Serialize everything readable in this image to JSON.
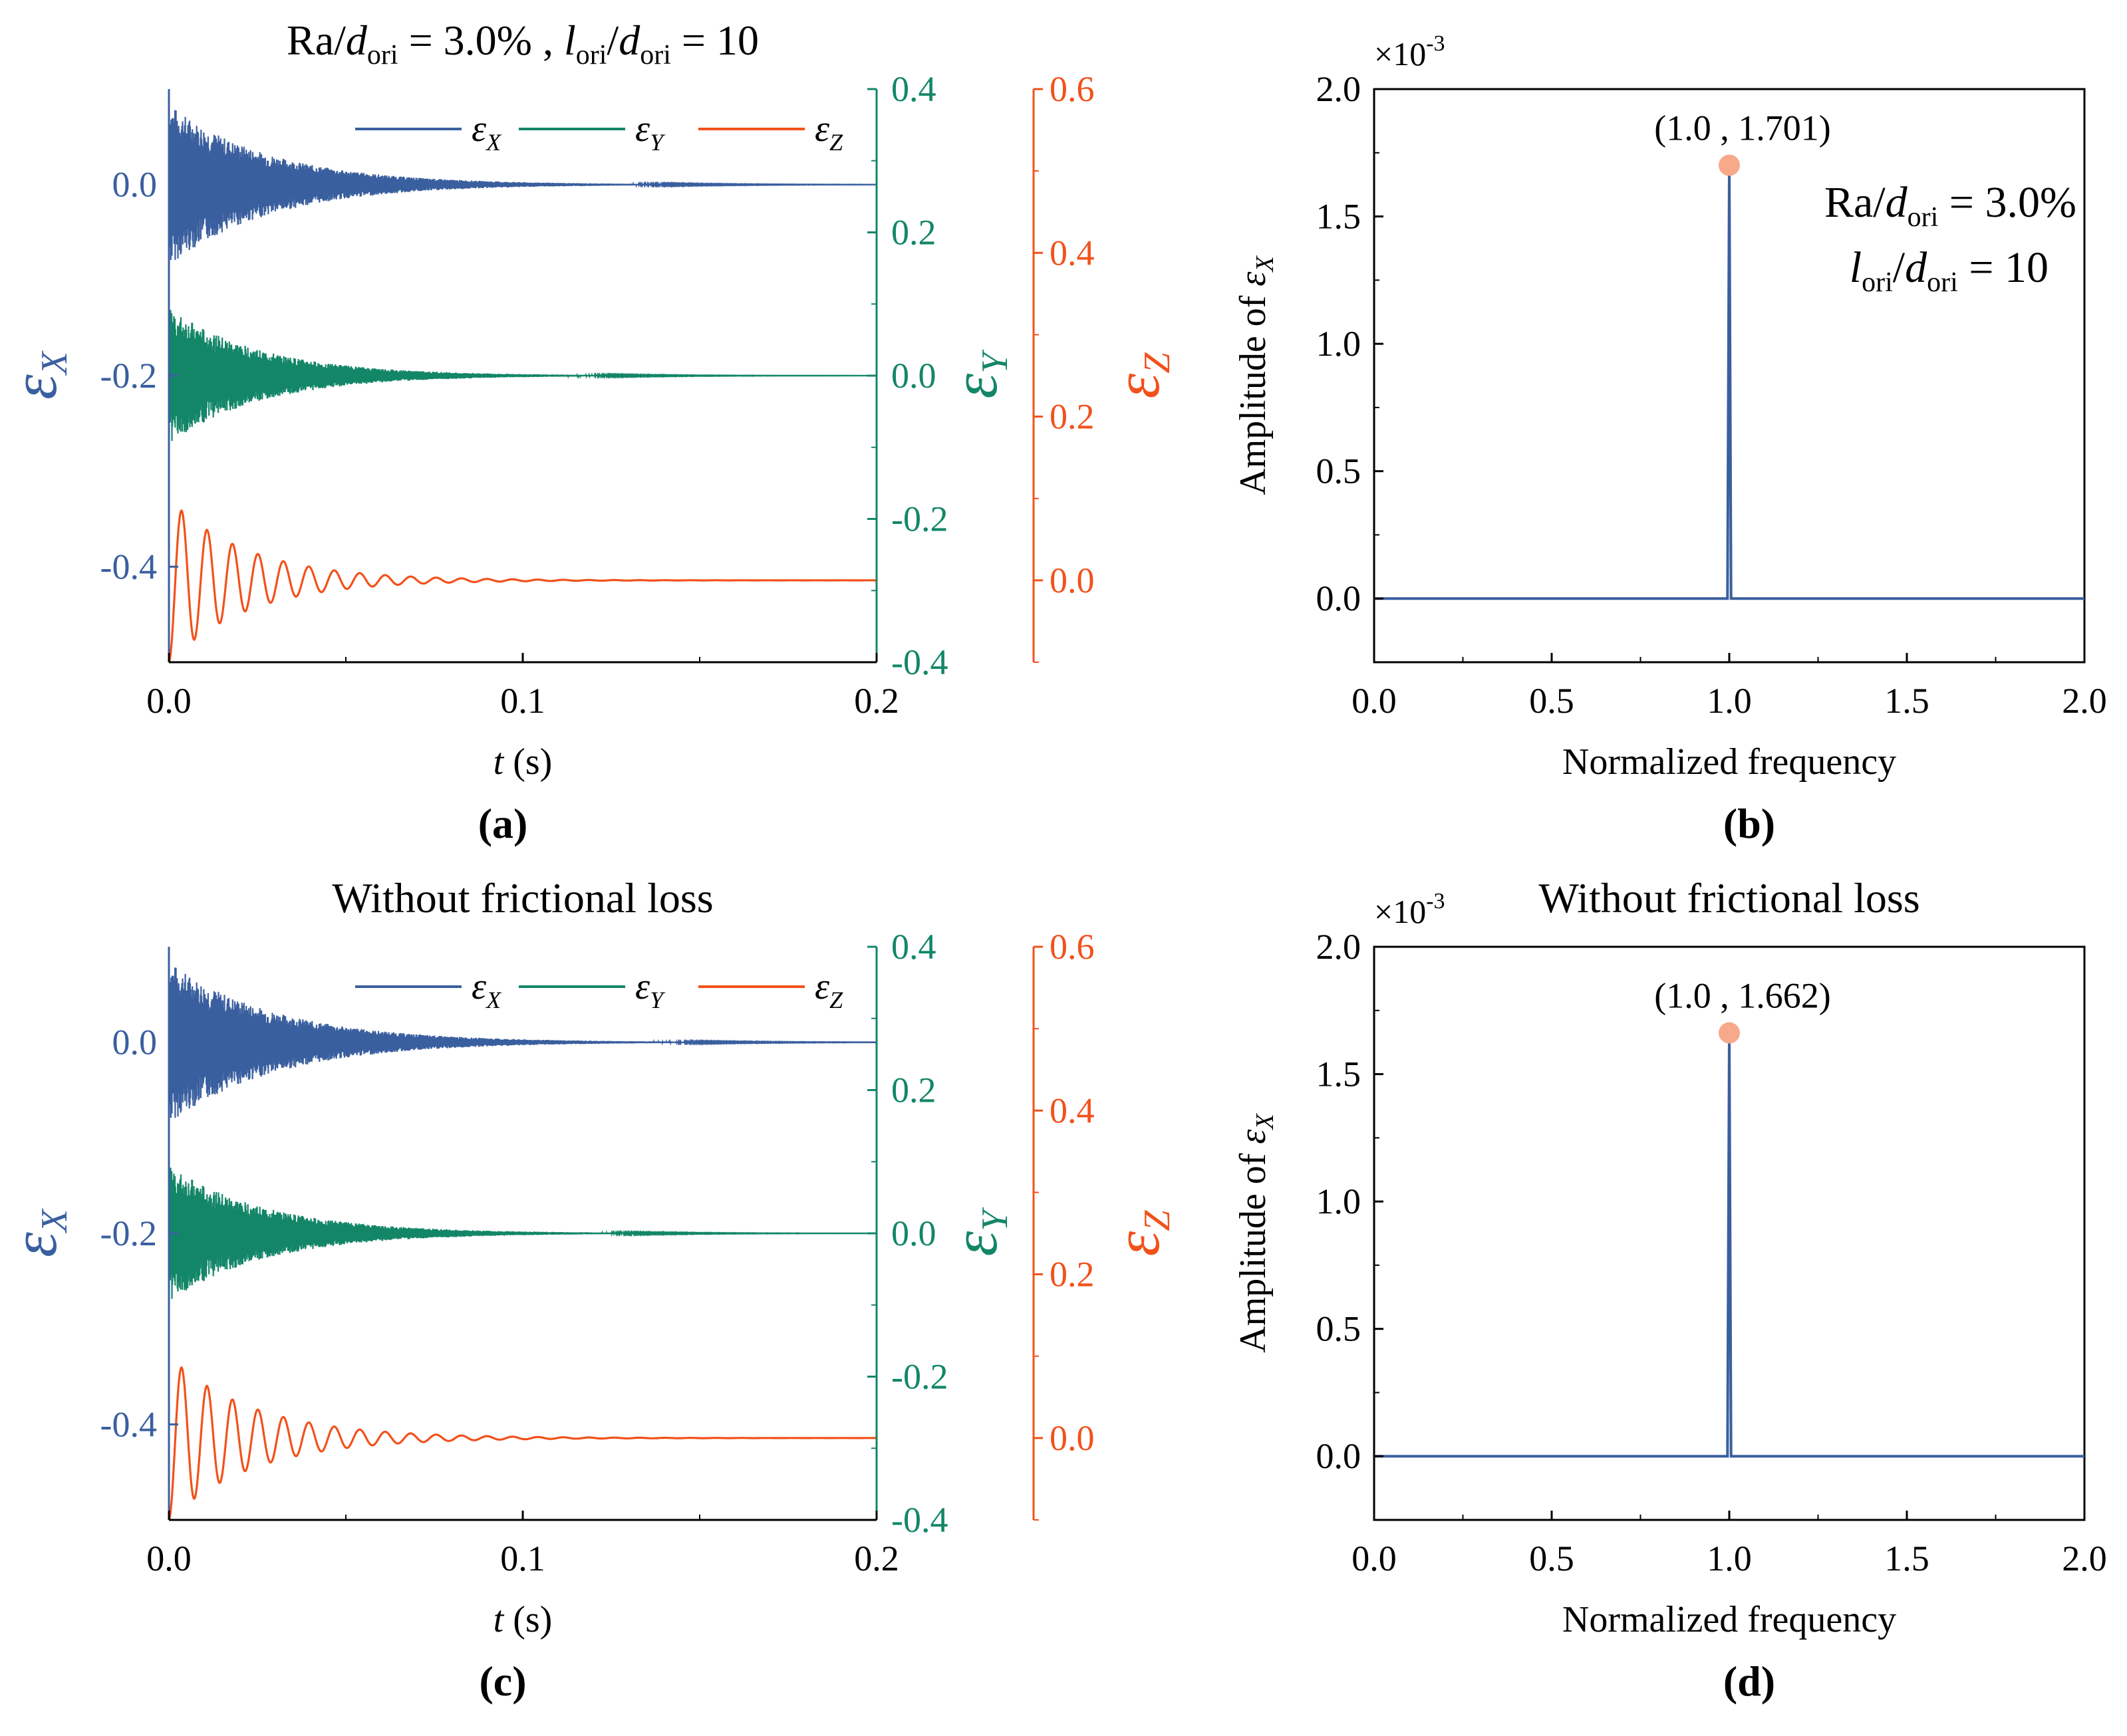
{
  "figure": {
    "colors": {
      "x": "#3a5f9f",
      "y": "#138668",
      "z": "#f2511b",
      "peak": "#f7a98a",
      "axis": "#000000"
    }
  },
  "chart_data": [
    {
      "panel": "a",
      "type": "line",
      "label": "(a)",
      "title_parts": [
        "Ra/",
        "d",
        "ori",
        " = 3.0% , ",
        "l",
        "ori",
        "/",
        "d",
        "ori",
        " = 10"
      ],
      "xlabel": {
        "var": "t",
        "unit": " (s)"
      },
      "xlim": [
        0.0,
        0.2
      ],
      "xticks": [
        "0.0",
        "0.1",
        "0.2"
      ],
      "xtick_values": [
        0.0,
        0.1,
        0.2
      ],
      "axes": [
        {
          "name": "εX",
          "symbol": "ε",
          "sub": "X",
          "ylim": [
            -0.5,
            0.1
          ],
          "ticks": [
            "-0.4",
            "-0.2",
            "0.0"
          ],
          "tick_values": [
            -0.4,
            -0.2,
            0.0
          ],
          "color": "#3a5f9f"
        },
        {
          "name": "εY",
          "symbol": "ε",
          "sub": "Y",
          "ylim": [
            -0.4,
            0.4
          ],
          "ticks": [
            "-0.4",
            "-0.2",
            "0.0",
            "0.2",
            "0.4"
          ],
          "tick_values": [
            -0.4,
            -0.2,
            0.0,
            0.2,
            0.4
          ],
          "color": "#138668"
        },
        {
          "name": "εZ",
          "symbol": "ε",
          "sub": "Z",
          "ylim": [
            -0.1,
            0.6
          ],
          "ticks": [
            "0.0",
            "0.2",
            "0.4",
            "0.6"
          ],
          "tick_values": [
            0.0,
            0.2,
            0.4,
            0.6
          ],
          "color": "#f2511b"
        }
      ],
      "legend": [
        {
          "symbol": "ε",
          "sub": "X"
        },
        {
          "symbol": "ε",
          "sub": "Y"
        },
        {
          "symbol": "ε",
          "sub": "Z"
        }
      ],
      "series": [
        {
          "name": "εX",
          "axis": 0,
          "baseline": 0.0,
          "amplitude": 0.085,
          "decay": 35,
          "frequency": 2000,
          "color": "#3a5f9f"
        },
        {
          "name": "εY",
          "axis": 1,
          "baseline": 0.0,
          "amplitude": 0.095,
          "decay": 38,
          "frequency": 2000,
          "color": "#138668"
        },
        {
          "name": "εZ",
          "axis": 2,
          "baseline": 0.0,
          "amplitude": 0.1,
          "decay": 45,
          "frequency": 139,
          "color": "#f2511b"
        }
      ]
    },
    {
      "panel": "b",
      "type": "line",
      "label": "(b)",
      "xlabel": "Normalized frequency",
      "ylabel": "Amplitude of εX",
      "ylabel_parts": [
        "Amplitude of ",
        "ε",
        "X"
      ],
      "xlim": [
        0.0,
        2.0
      ],
      "ylim": [
        -0.25,
        2.0
      ],
      "y_multiplier": "×10",
      "y_exponent": "-3",
      "xticks": [
        "0.0",
        "0.5",
        "1.0",
        "1.5",
        "2.0"
      ],
      "xtick_values": [
        0.0,
        0.5,
        1.0,
        1.5,
        2.0
      ],
      "yticks": [
        "0.0",
        "0.5",
        "1.0",
        "1.5",
        "2.0"
      ],
      "ytick_values": [
        0.0,
        0.5,
        1.0,
        1.5,
        2.0
      ],
      "peak": {
        "x": 1.0,
        "y": 1.701,
        "label": "(1.0 , 1.701)"
      },
      "annotation_line1": [
        "Ra/",
        "d",
        "ori",
        " = 3.0%"
      ],
      "annotation_line2": [
        "l",
        "ori",
        "/",
        "d",
        "ori",
        " = 10"
      ],
      "series": [
        {
          "name": "εX spectrum",
          "x": [
            0.0,
            0.995,
            1.0,
            1.005,
            2.0
          ],
          "y": [
            0.0,
            0.0,
            1.701,
            0.0,
            0.0
          ],
          "color": "#3a5f9f"
        }
      ]
    },
    {
      "panel": "c",
      "type": "line",
      "label": "(c)",
      "title": "Without frictional loss",
      "xlabel": {
        "var": "t",
        "unit": " (s)"
      },
      "xlim": [
        0.0,
        0.2
      ],
      "xticks": [
        "0.0",
        "0.1",
        "0.2"
      ],
      "xtick_values": [
        0.0,
        0.1,
        0.2
      ],
      "axes": [
        {
          "name": "εX",
          "symbol": "ε",
          "sub": "X",
          "ylim": [
            -0.5,
            0.1
          ],
          "ticks": [
            "-0.4",
            "-0.2",
            "0.0"
          ],
          "tick_values": [
            -0.4,
            -0.2,
            0.0
          ],
          "color": "#3a5f9f"
        },
        {
          "name": "εY",
          "symbol": "ε",
          "sub": "Y",
          "ylim": [
            -0.4,
            0.4
          ],
          "ticks": [
            "-0.4",
            "-0.2",
            "0.0",
            "0.2",
            "0.4"
          ],
          "tick_values": [
            -0.4,
            -0.2,
            0.0,
            0.2,
            0.4
          ],
          "color": "#138668"
        },
        {
          "name": "εZ",
          "symbol": "ε",
          "sub": "Z",
          "ylim": [
            -0.1,
            0.6
          ],
          "ticks": [
            "0.0",
            "0.2",
            "0.4",
            "0.6"
          ],
          "tick_values": [
            0.0,
            0.2,
            0.4,
            0.6
          ],
          "color": "#f2511b"
        }
      ],
      "legend": [
        {
          "symbol": "ε",
          "sub": "X"
        },
        {
          "symbol": "ε",
          "sub": "Y"
        },
        {
          "symbol": "ε",
          "sub": "Z"
        }
      ],
      "series": [
        {
          "name": "εX",
          "axis": 0,
          "baseline": 0.0,
          "amplitude": 0.085,
          "decay": 33,
          "frequency": 2000,
          "color": "#3a5f9f"
        },
        {
          "name": "εY",
          "axis": 1,
          "baseline": 0.0,
          "amplitude": 0.095,
          "decay": 36,
          "frequency": 2000,
          "color": "#138668"
        },
        {
          "name": "εZ",
          "axis": 2,
          "baseline": 0.0,
          "amplitude": 0.1,
          "decay": 42,
          "frequency": 139,
          "color": "#f2511b"
        }
      ]
    },
    {
      "panel": "d",
      "type": "line",
      "label": "(d)",
      "title": "Without frictional loss",
      "xlabel": "Normalized frequency",
      "ylabel": "Amplitude of εX",
      "ylabel_parts": [
        "Amplitude of ",
        "ε",
        "X"
      ],
      "xlim": [
        0.0,
        2.0
      ],
      "ylim": [
        -0.25,
        2.0
      ],
      "y_multiplier": "×10",
      "y_exponent": "-3",
      "xticks": [
        "0.0",
        "0.5",
        "1.0",
        "1.5",
        "2.0"
      ],
      "xtick_values": [
        0.0,
        0.5,
        1.0,
        1.5,
        2.0
      ],
      "yticks": [
        "0.0",
        "0.5",
        "1.0",
        "1.5",
        "2.0"
      ],
      "ytick_values": [
        0.0,
        0.5,
        1.0,
        1.5,
        2.0
      ],
      "peak": {
        "x": 1.0,
        "y": 1.662,
        "label": "(1.0 , 1.662)"
      },
      "series": [
        {
          "name": "εX spectrum",
          "x": [
            0.0,
            0.995,
            1.0,
            1.005,
            2.0
          ],
          "y": [
            0.0,
            0.0,
            1.662,
            0.0,
            0.0
          ],
          "color": "#3a5f9f"
        }
      ]
    }
  ]
}
